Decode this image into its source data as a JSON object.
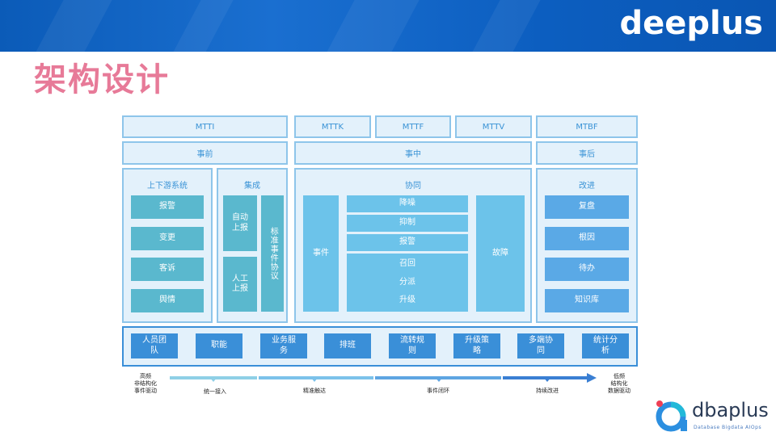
{
  "header": {
    "brand": "deeplus",
    "title": "架构设计"
  },
  "metrics": {
    "mtti": "MTTI",
    "mttk": "MTTK",
    "mttf": "MTTF",
    "mttv": "MTTV",
    "mtbf": "MTBF"
  },
  "phases": {
    "before": "事前",
    "during": "事中",
    "after": "事后"
  },
  "upstream": {
    "title": "上下游系统",
    "items": [
      "报警",
      "变更",
      "客诉",
      "舆情"
    ]
  },
  "integration": {
    "title": "集成",
    "auto_report": "自动上报",
    "manual_report": "人工上报",
    "standard_protocol": "标准事件协议"
  },
  "collaboration": {
    "title": "协同",
    "event": "事件",
    "middle": [
      "降噪",
      "抑制",
      "报警",
      "召回",
      "分派",
      "升级"
    ],
    "fault": "故障"
  },
  "improvement": {
    "title": "改进",
    "items": [
      "复盘",
      "根因",
      "待办",
      "知识库"
    ]
  },
  "foundation": {
    "items": [
      "人员团队",
      "职能",
      "业务服务",
      "排班",
      "流转规则",
      "升级策略",
      "多端协同",
      "统计分析"
    ]
  },
  "timeline": {
    "left_caption": "高频\n非结构化\n事件驱动",
    "right_caption": "低频\n结构化\n数据驱动",
    "stages": [
      "统一接入",
      "精准触达",
      "事件闭环",
      "持续改进"
    ]
  },
  "footer": {
    "logo_text": "dbaplus",
    "logo_sub": "Database Bigdata AIOps"
  }
}
